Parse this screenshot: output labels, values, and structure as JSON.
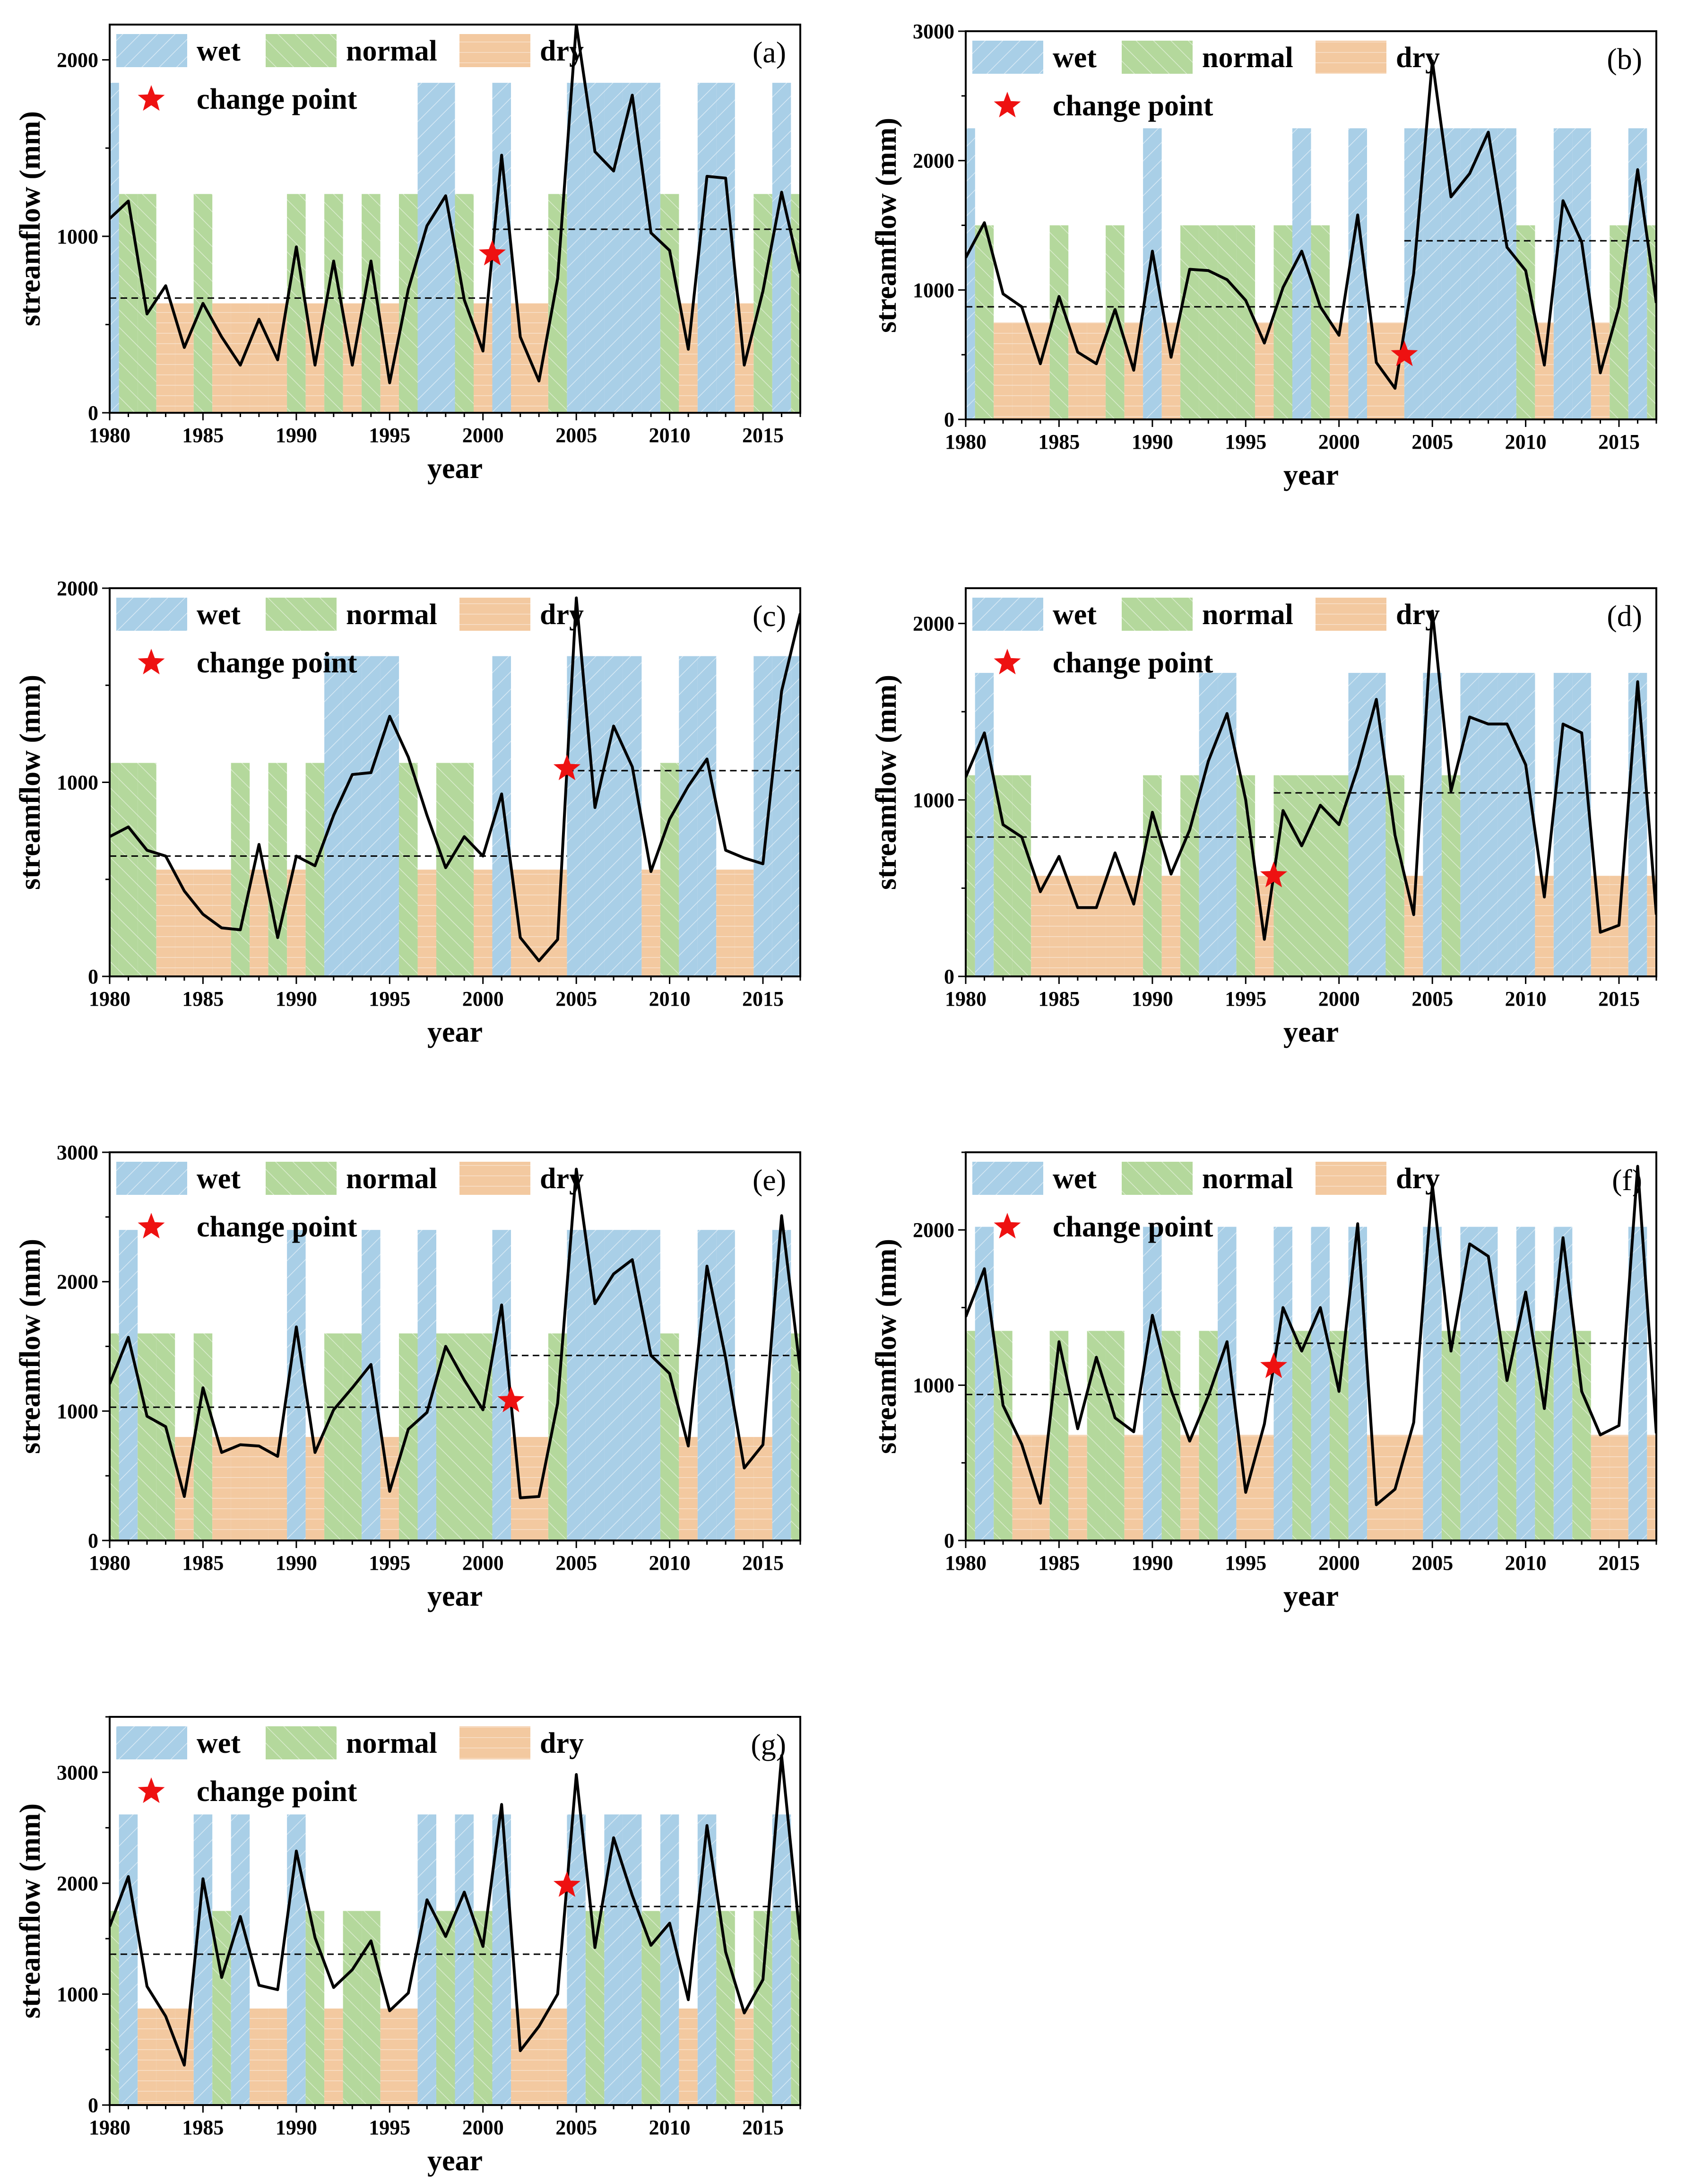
{
  "colors": {
    "wet": "#a9cfe7",
    "normal": "#b4d89c",
    "dry": "#f3c9a0",
    "line": "#000000",
    "star": "#ee1111",
    "mean": "#000000"
  },
  "legend": {
    "wet": "wet",
    "normal": "normal",
    "dry": "dry",
    "change_point": "change point"
  },
  "axis_labels": {
    "x": "year",
    "y": "streamflow (mm)"
  },
  "chart_data": [
    {
      "type": "line",
      "panel": "(a)",
      "xlabel": "year",
      "ylabel": "streamflow (mm)",
      "xlim": [
        1980,
        2017
      ],
      "xticks": [
        1980,
        1985,
        1990,
        1995,
        2000,
        2005,
        2010,
        2015
      ],
      "ylim": [
        0,
        2200
      ],
      "yticks": [
        0,
        1000,
        2000
      ],
      "grid": false,
      "legend_position": "top-left",
      "years": [
        1980,
        1981,
        1982,
        1983,
        1984,
        1985,
        1986,
        1987,
        1988,
        1989,
        1990,
        1991,
        1992,
        1993,
        1994,
        1995,
        1996,
        1997,
        1998,
        1999,
        2000,
        2001,
        2002,
        2003,
        2004,
        2005,
        2006,
        2007,
        2008,
        2009,
        2010,
        2011,
        2012,
        2013,
        2014,
        2015,
        2016,
        2017
      ],
      "values": [
        1100,
        1200,
        560,
        720,
        370,
        620,
        430,
        270,
        530,
        300,
        940,
        270,
        860,
        270,
        860,
        170,
        700,
        1060,
        1230,
        640,
        350,
        1460,
        430,
        180,
        760,
        2200,
        1480,
        1370,
        1800,
        1020,
        920,
        360,
        1340,
        1330,
        270,
        690,
        1250,
        790
      ],
      "classes": [
        "w",
        "n",
        "n",
        "d",
        "d",
        "n",
        "d",
        "d",
        "d",
        "d",
        "n",
        "d",
        "n",
        "d",
        "n",
        "d",
        "n",
        "w",
        "w",
        "n",
        "d",
        "w",
        "d",
        "d",
        "n",
        "w",
        "w",
        "w",
        "w",
        "w",
        "n",
        "d",
        "w",
        "w",
        "d",
        "n",
        "w",
        "n"
      ],
      "bar_levels": {
        "wet": 1870,
        "normal": 1240,
        "dry": 620
      },
      "mean_before": 650,
      "mean_after": 1040,
      "change_point": {
        "year": 2000.5,
        "value": 900
      }
    },
    {
      "type": "line",
      "panel": "(b)",
      "xlabel": "year",
      "ylabel": "streamflow (mm)",
      "xlim": [
        1980,
        2017
      ],
      "xticks": [
        1980,
        1985,
        1990,
        1995,
        2000,
        2005,
        2010,
        2015
      ],
      "ylim": [
        0,
        3000
      ],
      "yticks": [
        0,
        1000,
        2000,
        3000
      ],
      "grid": false,
      "legend_position": "top-left",
      "years": [
        1980,
        1981,
        1982,
        1983,
        1984,
        1985,
        1986,
        1987,
        1988,
        1989,
        1990,
        1991,
        1992,
        1993,
        1994,
        1995,
        1996,
        1997,
        1998,
        1999,
        2000,
        2001,
        2002,
        2003,
        2004,
        2005,
        2006,
        2007,
        2008,
        2009,
        2010,
        2011,
        2012,
        2013,
        2014,
        2015,
        2016,
        2017
      ],
      "values": [
        1250,
        1520,
        970,
        870,
        430,
        950,
        520,
        430,
        850,
        380,
        1300,
        480,
        1160,
        1150,
        1080,
        920,
        590,
        1020,
        1300,
        870,
        650,
        1580,
        440,
        240,
        1130,
        2770,
        1720,
        1900,
        2220,
        1330,
        1150,
        420,
        1690,
        1370,
        360,
        870,
        1930,
        900
      ],
      "classes": [
        "w",
        "n",
        "d",
        "d",
        "d",
        "n",
        "d",
        "d",
        "n",
        "d",
        "w",
        "d",
        "n",
        "n",
        "n",
        "n",
        "d",
        "n",
        "w",
        "n",
        "d",
        "w",
        "d",
        "d",
        "w",
        "w",
        "w",
        "w",
        "w",
        "w",
        "n",
        "d",
        "w",
        "w",
        "d",
        "n",
        "w",
        "n"
      ],
      "bar_levels": {
        "wet": 2250,
        "normal": 1500,
        "dry": 750
      },
      "mean_before": 870,
      "mean_after": 1380,
      "change_point": {
        "year": 2003.5,
        "value": 500
      }
    },
    {
      "type": "line",
      "panel": "(c)",
      "xlabel": "year",
      "ylabel": "streamflow (mm)",
      "xlim": [
        1980,
        2017
      ],
      "xticks": [
        1980,
        1985,
        1990,
        1995,
        2000,
        2005,
        2010,
        2015
      ],
      "ylim": [
        0,
        2000
      ],
      "yticks": [
        0,
        1000,
        2000
      ],
      "grid": false,
      "legend_position": "top-left",
      "years": [
        1980,
        1981,
        1982,
        1983,
        1984,
        1985,
        1986,
        1987,
        1988,
        1989,
        1990,
        1991,
        1992,
        1993,
        1994,
        1995,
        1996,
        1997,
        1998,
        1999,
        2000,
        2001,
        2002,
        2003,
        2004,
        2005,
        2006,
        2007,
        2008,
        2009,
        2010,
        2011,
        2012,
        2013,
        2014,
        2015,
        2016,
        2017
      ],
      "values": [
        720,
        770,
        650,
        620,
        440,
        320,
        250,
        240,
        680,
        200,
        620,
        570,
        830,
        1040,
        1050,
        1340,
        1130,
        830,
        560,
        720,
        620,
        940,
        200,
        80,
        190,
        1950,
        870,
        1290,
        1080,
        540,
        810,
        980,
        1120,
        650,
        610,
        580,
        1470,
        1870
      ],
      "classes": [
        "n",
        "n",
        "n",
        "d",
        "d",
        "d",
        "d",
        "n",
        "d",
        "n",
        "d",
        "n",
        "w",
        "w",
        "w",
        "w",
        "n",
        "d",
        "n",
        "n",
        "d",
        "w",
        "d",
        "d",
        "d",
        "w",
        "w",
        "w",
        "w",
        "d",
        "n",
        "w",
        "w",
        "d",
        "d",
        "w",
        "w",
        "w"
      ],
      "bar_levels": {
        "wet": 1650,
        "normal": 1100,
        "dry": 550
      },
      "mean_before": 620,
      "mean_after": 1060,
      "change_point": {
        "year": 2004.5,
        "value": 1070
      }
    },
    {
      "type": "line",
      "panel": "(d)",
      "xlabel": "year",
      "ylabel": "streamflow (mm)",
      "xlim": [
        1980,
        2017
      ],
      "xticks": [
        1980,
        1985,
        1990,
        1995,
        2000,
        2005,
        2010,
        2015
      ],
      "ylim": [
        0,
        2200
      ],
      "yticks": [
        0,
        1000,
        2000
      ],
      "grid": false,
      "legend_position": "top-left",
      "years": [
        1980,
        1981,
        1982,
        1983,
        1984,
        1985,
        1986,
        1987,
        1988,
        1989,
        1990,
        1991,
        1992,
        1993,
        1994,
        1995,
        1996,
        1997,
        1998,
        1999,
        2000,
        2001,
        2002,
        2003,
        2004,
        2005,
        2006,
        2007,
        2008,
        2009,
        2010,
        2011,
        2012,
        2013,
        2014,
        2015,
        2016,
        2017
      ],
      "values": [
        1130,
        1380,
        860,
        790,
        480,
        680,
        390,
        390,
        700,
        410,
        930,
        580,
        830,
        1220,
        1490,
        1000,
        210,
        940,
        740,
        970,
        860,
        1180,
        1570,
        800,
        350,
        2070,
        1050,
        1470,
        1430,
        1430,
        1200,
        450,
        1430,
        1380,
        250,
        290,
        1670,
        350
      ],
      "classes": [
        "n",
        "w",
        "n",
        "n",
        "d",
        "d",
        "d",
        "d",
        "d",
        "d",
        "n",
        "d",
        "n",
        "w",
        "w",
        "n",
        "d",
        "n",
        "n",
        "n",
        "n",
        "w",
        "w",
        "n",
        "d",
        "w",
        "n",
        "w",
        "w",
        "w",
        "w",
        "d",
        "w",
        "w",
        "d",
        "d",
        "w",
        "d"
      ],
      "bar_levels": {
        "wet": 1720,
        "normal": 1140,
        "dry": 570
      },
      "mean_before": 790,
      "mean_after": 1040,
      "change_point": {
        "year": 1996.5,
        "value": 570
      }
    },
    {
      "type": "line",
      "panel": "(e)",
      "xlabel": "year",
      "ylabel": "streamflow (mm)",
      "xlim": [
        1980,
        2017
      ],
      "xticks": [
        1980,
        1985,
        1990,
        1995,
        2000,
        2005,
        2010,
        2015
      ],
      "ylim": [
        0,
        3000
      ],
      "yticks": [
        0,
        1000,
        2000,
        3000
      ],
      "grid": false,
      "legend_position": "top-left",
      "years": [
        1980,
        1981,
        1982,
        1983,
        1984,
        1985,
        1986,
        1987,
        1988,
        1989,
        1990,
        1991,
        1992,
        1993,
        1994,
        1995,
        1996,
        1997,
        1998,
        1999,
        2000,
        2001,
        2002,
        2003,
        2004,
        2005,
        2006,
        2007,
        2008,
        2009,
        2010,
        2011,
        2012,
        2013,
        2014,
        2015,
        2016,
        2017
      ],
      "values": [
        1210,
        1570,
        960,
        880,
        340,
        1180,
        680,
        740,
        730,
        650,
        1650,
        680,
        1010,
        1180,
        1360,
        380,
        860,
        990,
        1500,
        1240,
        1010,
        1820,
        330,
        340,
        1060,
        2870,
        1830,
        2060,
        2170,
        1430,
        1290,
        730,
        2120,
        1410,
        560,
        740,
        2510,
        1310
      ],
      "classes": [
        "n",
        "w",
        "n",
        "n",
        "d",
        "n",
        "d",
        "d",
        "d",
        "d",
        "w",
        "d",
        "n",
        "n",
        "w",
        "d",
        "n",
        "w",
        "n",
        "n",
        "n",
        "w",
        "d",
        "d",
        "n",
        "w",
        "w",
        "w",
        "w",
        "w",
        "n",
        "d",
        "w",
        "w",
        "d",
        "d",
        "w",
        "n"
      ],
      "bar_levels": {
        "wet": 2400,
        "normal": 1600,
        "dry": 800
      },
      "mean_before": 1030,
      "mean_after": 1430,
      "change_point": {
        "year": 2001.5,
        "value": 1080
      }
    },
    {
      "type": "line",
      "panel": "(f)",
      "xlabel": "year",
      "ylabel": "streamflow (mm)",
      "xlim": [
        1980,
        2017
      ],
      "xticks": [
        1980,
        1985,
        1990,
        1995,
        2000,
        2005,
        2010,
        2015
      ],
      "ylim": [
        0,
        2500
      ],
      "yticks": [
        0,
        1000,
        2000
      ],
      "grid": false,
      "legend_position": "top-left",
      "years": [
        1980,
        1981,
        1982,
        1983,
        1984,
        1985,
        1986,
        1987,
        1988,
        1989,
        1990,
        1991,
        1992,
        1993,
        1994,
        1995,
        1996,
        1997,
        1998,
        1999,
        2000,
        2001,
        2002,
        2003,
        2004,
        2005,
        2006,
        2007,
        2008,
        2009,
        2010,
        2011,
        2012,
        2013,
        2014,
        2015,
        2016,
        2017
      ],
      "values": [
        1440,
        1750,
        870,
        620,
        240,
        1280,
        720,
        1180,
        790,
        700,
        1450,
        970,
        640,
        930,
        1280,
        310,
        750,
        1500,
        1220,
        1500,
        960,
        2040,
        230,
        330,
        760,
        2290,
        1220,
        1910,
        1830,
        1030,
        1600,
        850,
        1950,
        960,
        680,
        740,
        2410,
        690
      ],
      "classes": [
        "n",
        "w",
        "n",
        "d",
        "d",
        "n",
        "d",
        "n",
        "n",
        "d",
        "w",
        "n",
        "d",
        "n",
        "w",
        "d",
        "d",
        "w",
        "n",
        "w",
        "n",
        "w",
        "d",
        "d",
        "d",
        "w",
        "n",
        "w",
        "w",
        "n",
        "w",
        "n",
        "w",
        "n",
        "d",
        "d",
        "w",
        "d"
      ],
      "bar_levels": {
        "wet": 2020,
        "normal": 1350,
        "dry": 680
      },
      "mean_before": 940,
      "mean_after": 1270,
      "change_point": {
        "year": 1996.5,
        "value": 1120
      }
    },
    {
      "type": "line",
      "panel": "(g)",
      "xlabel": "year",
      "ylabel": "streamflow (mm)",
      "xlim": [
        1980,
        2017
      ],
      "xticks": [
        1980,
        1985,
        1990,
        1995,
        2000,
        2005,
        2010,
        2015
      ],
      "ylim": [
        0,
        3500
      ],
      "yticks": [
        0,
        1000,
        2000,
        3000
      ],
      "grid": false,
      "legend_position": "top-left",
      "years": [
        1980,
        1981,
        1982,
        1983,
        1984,
        1985,
        1986,
        1987,
        1988,
        1989,
        1990,
        1991,
        1992,
        1993,
        1994,
        1995,
        1996,
        1997,
        1998,
        1999,
        2000,
        2001,
        2002,
        2003,
        2004,
        2005,
        2006,
        2007,
        2008,
        2009,
        2010,
        2011,
        2012,
        2013,
        2014,
        2015,
        2016,
        2017
      ],
      "values": [
        1610,
        2060,
        1070,
        800,
        360,
        2040,
        1150,
        1700,
        1080,
        1040,
        2290,
        1510,
        1060,
        1220,
        1480,
        850,
        1010,
        1850,
        1520,
        1920,
        1430,
        2710,
        490,
        710,
        1000,
        2980,
        1420,
        2410,
        1890,
        1440,
        1640,
        950,
        2520,
        1380,
        830,
        1130,
        3150,
        1490
      ],
      "classes": [
        "n",
        "w",
        "d",
        "d",
        "d",
        "w",
        "n",
        "w",
        "d",
        "d",
        "w",
        "n",
        "d",
        "n",
        "n",
        "d",
        "d",
        "w",
        "n",
        "w",
        "n",
        "w",
        "d",
        "d",
        "d",
        "w",
        "n",
        "w",
        "w",
        "n",
        "w",
        "d",
        "w",
        "n",
        "d",
        "n",
        "w",
        "n"
      ],
      "bar_levels": {
        "wet": 2620,
        "normal": 1750,
        "dry": 870
      },
      "mean_before": 1360,
      "mean_after": 1790,
      "change_point": {
        "year": 2004.5,
        "value": 1980
      }
    }
  ]
}
